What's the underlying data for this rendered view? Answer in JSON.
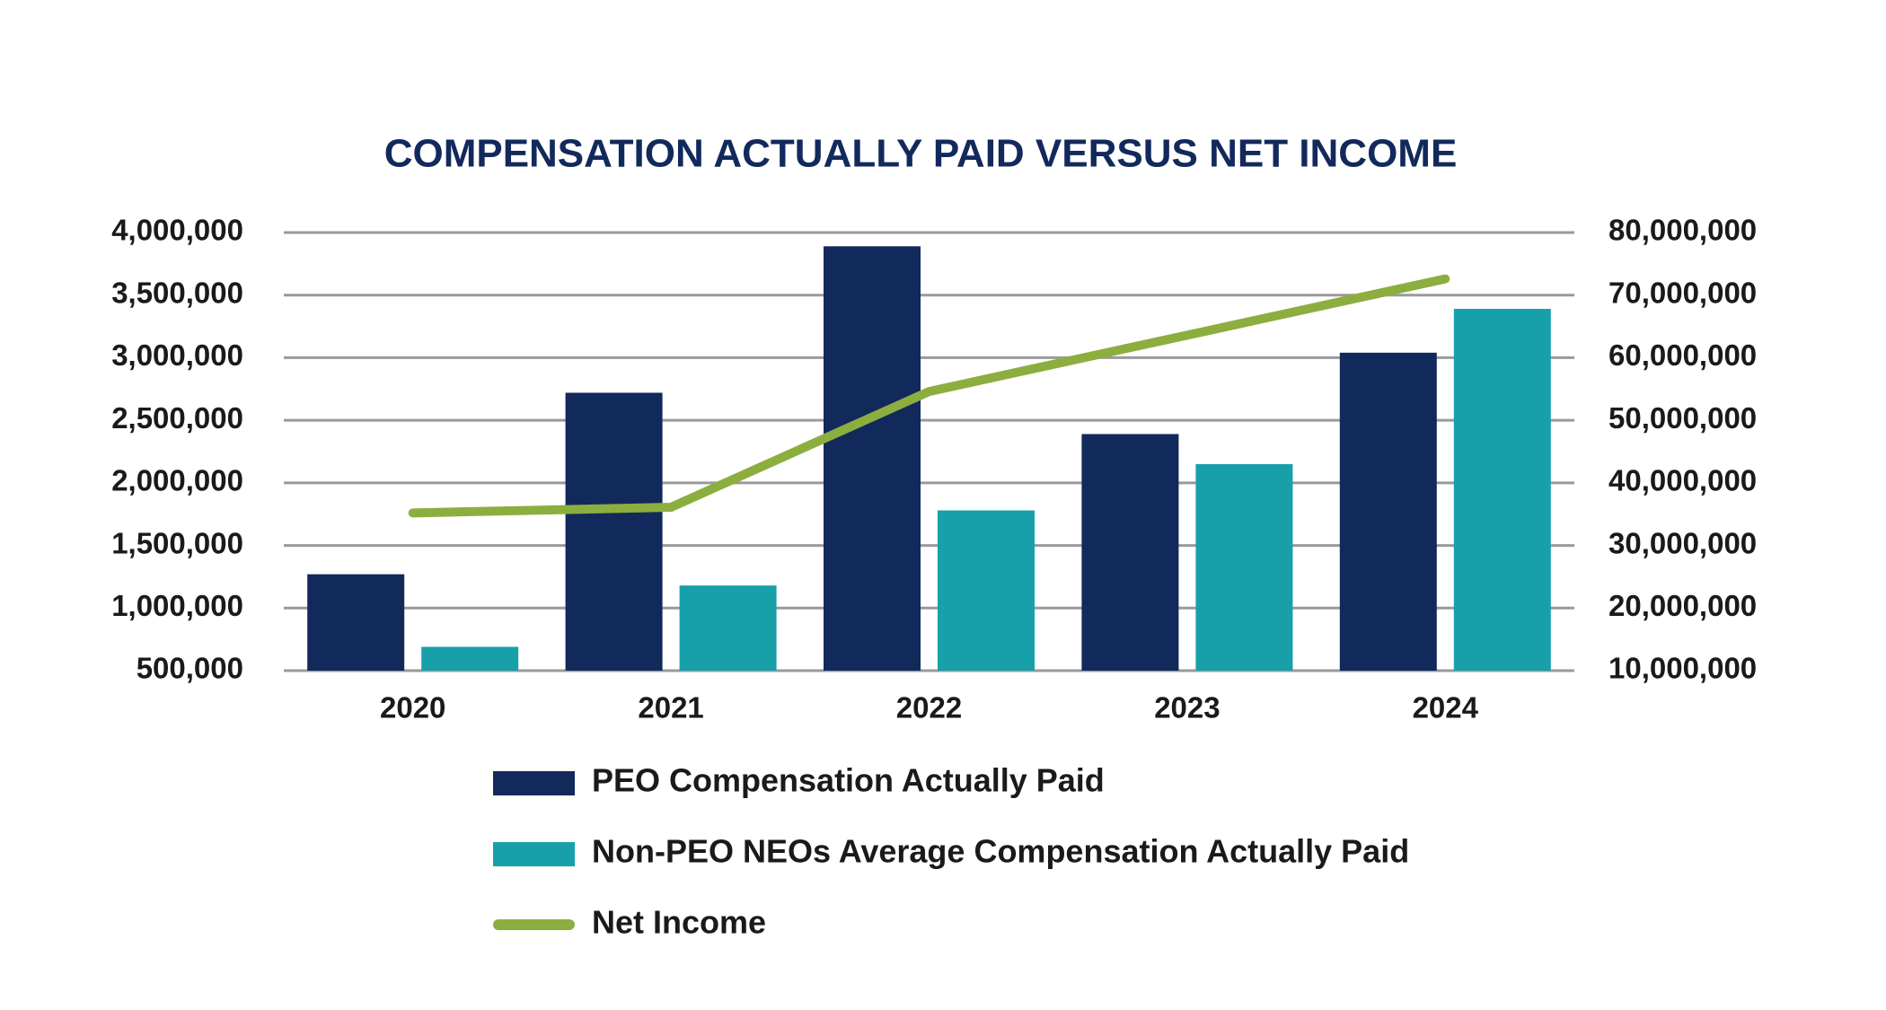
{
  "chart_data": {
    "type": "bar",
    "title": "COMPENSATION ACTUALLY PAID VERSUS NET INCOME",
    "categories": [
      "2020",
      "2021",
      "2022",
      "2023",
      "2024"
    ],
    "series": [
      {
        "name": "PEO Compensation Actually Paid",
        "type": "bar",
        "color": "#12295c",
        "values": [
          1270000,
          2720000,
          3890000,
          2390000,
          3040000
        ]
      },
      {
        "name": "Non-PEO NEOs Average Compensation Actually Paid",
        "type": "bar",
        "color": "#17a0aa",
        "values": [
          690000,
          1180000,
          1780000,
          2150000,
          3390000
        ]
      },
      {
        "name": "Net Income",
        "type": "line",
        "axis": "y2",
        "color": "#8cae3f",
        "values": [
          35200000,
          36100000,
          54600000,
          63600000,
          72600000
        ]
      }
    ],
    "ylim": [
      500000,
      4000000
    ],
    "yticks": [
      {
        "value": 500000,
        "label": "500,000"
      },
      {
        "value": 1000000,
        "label": "1,000,000"
      },
      {
        "value": 1500000,
        "label": "1,500,000"
      },
      {
        "value": 2000000,
        "label": "2,000,000"
      },
      {
        "value": 2500000,
        "label": "2,500,000"
      },
      {
        "value": 3000000,
        "label": "3,000,000"
      },
      {
        "value": 3500000,
        "label": "3,500,000"
      },
      {
        "value": 4000000,
        "label": "4,000,000"
      }
    ],
    "y2lim": [
      10000000,
      80000000
    ],
    "y2ticks": [
      {
        "value": 10000000,
        "label": "10,000,000"
      },
      {
        "value": 20000000,
        "label": "20,000,000"
      },
      {
        "value": 30000000,
        "label": "30,000,000"
      },
      {
        "value": 40000000,
        "label": "40,000,000"
      },
      {
        "value": 50000000,
        "label": "50,000,000"
      },
      {
        "value": 60000000,
        "label": "60,000,000"
      },
      {
        "value": 70000000,
        "label": "70,000,000"
      },
      {
        "value": 80000000,
        "label": "80,000,000"
      }
    ],
    "grid": true,
    "legend": "bottom"
  }
}
